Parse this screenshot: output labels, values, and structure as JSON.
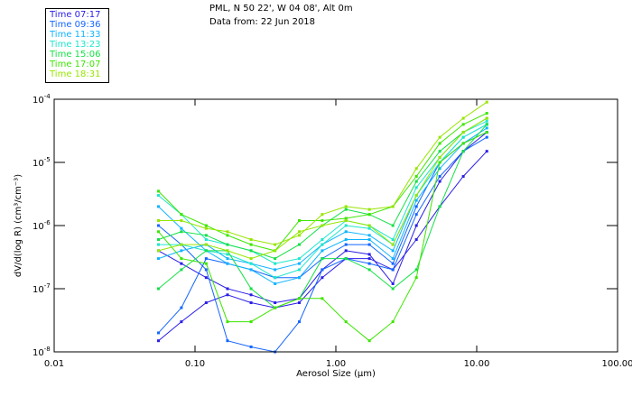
{
  "chart_data": {
    "type": "line",
    "title_lines": [
      "PML, N 50 22', W 04 08', Alt 0m",
      "Data from: 22 Jun 2018"
    ],
    "xlabel": "Aerosol Size (μm)",
    "ylabel": "dV/d(log R)  (cm³/cm⁻³)",
    "xscale": "log",
    "yscale": "log",
    "xlim": [
      0.01,
      100
    ],
    "ylim": [
      1e-08,
      0.0001
    ],
    "xticks": [
      "0.01",
      "0.10",
      "1.00",
      "10.00",
      "100.00"
    ],
    "yticks": [
      {
        "base": "10",
        "exp": "-4"
      },
      {
        "base": "10",
        "exp": "-5"
      },
      {
        "base": "10",
        "exp": "-6"
      },
      {
        "base": "10",
        "exp": "-7"
      },
      {
        "base": "10",
        "exp": "-8"
      }
    ],
    "legend": "top-left",
    "legend_entries": [
      {
        "label": "Time 07:17",
        "color": "#2a1ee6"
      },
      {
        "label": "Time 09:36",
        "color": "#1466ff"
      },
      {
        "label": "Time 11:33",
        "color": "#10b4ff"
      },
      {
        "label": "Time 13:23",
        "color": "#1ee6cc"
      },
      {
        "label": "Time 15:06",
        "color": "#14e046"
      },
      {
        "label": "Time 17:07",
        "color": "#3ce600"
      },
      {
        "label": "Time 18:31",
        "color": "#96e600"
      }
    ],
    "x": [
      0.055,
      0.08,
      0.12,
      0.17,
      0.25,
      0.37,
      0.55,
      0.8,
      1.18,
      1.73,
      2.54,
      3.73,
      5.47,
      8.03,
      11.8
    ],
    "series": [
      {
        "time": "07:17",
        "values": [
          1.5e-08,
          3e-08,
          6e-08,
          8e-08,
          6e-08,
          5e-08,
          6e-08,
          1.5e-07,
          3e-07,
          3e-07,
          2e-07,
          6e-07,
          2e-06,
          6e-06,
          1.5e-05
        ]
      },
      {
        "time": "07:17",
        "values": [
          4e-07,
          2.5e-07,
          1.5e-07,
          1e-07,
          8e-08,
          6e-08,
          7e-08,
          2e-07,
          4e-07,
          3.5e-07,
          1.2e-07,
          1e-06,
          5e-06,
          1.5e-05,
          3e-05
        ]
      },
      {
        "time": "09:36",
        "values": [
          2e-08,
          5e-08,
          3e-07,
          2.5e-07,
          2e-07,
          1.5e-07,
          1.5e-07,
          3e-07,
          5e-07,
          5e-07,
          2.5e-07,
          2e-06,
          1e-05,
          2e-05,
          3e-05
        ]
      },
      {
        "time": "09:36",
        "values": [
          1e-06,
          5e-07,
          2e-07,
          1.5e-08,
          1.2e-08,
          1e-08,
          3e-08,
          2e-07,
          3e-07,
          2.5e-07,
          2e-07,
          1.5e-06,
          6e-06,
          1.5e-05,
          2.5e-05
        ]
      },
      {
        "time": "11:33",
        "values": [
          2e-06,
          9e-07,
          4e-07,
          2.5e-07,
          2e-07,
          1.2e-07,
          1.5e-07,
          4e-07,
          6e-07,
          6e-07,
          3e-07,
          2.5e-06,
          8e-06,
          2e-05,
          3.5e-05
        ]
      },
      {
        "time": "11:33",
        "values": [
          3e-07,
          4e-07,
          5e-07,
          3e-07,
          2.5e-07,
          2e-07,
          2.5e-07,
          5e-07,
          8e-07,
          7e-07,
          4e-07,
          3e-06,
          1e-05,
          2.5e-05,
          4e-05
        ]
      },
      {
        "time": "13:23",
        "values": [
          5e-07,
          5e-07,
          4e-07,
          3.5e-07,
          2.5e-07,
          1.5e-07,
          2e-07,
          5e-07,
          1e-06,
          9e-07,
          5e-07,
          3e-06,
          1e-05,
          2.5e-05,
          4e-05
        ]
      },
      {
        "time": "13:23",
        "values": [
          3e-06,
          1.5e-06,
          6e-07,
          5e-07,
          4e-07,
          2.5e-07,
          3e-07,
          6e-07,
          1.2e-06,
          1e-06,
          6e-07,
          4e-06,
          1.2e-05,
          3e-05,
          4.5e-05
        ]
      },
      {
        "time": "15:06",
        "values": [
          6e-07,
          8e-07,
          7e-07,
          5e-07,
          4e-07,
          3e-07,
          5e-07,
          1e-06,
          1.8e-06,
          1.5e-06,
          1e-06,
          5e-06,
          1.5e-05,
          3e-05,
          5e-05
        ]
      },
      {
        "time": "15:06",
        "values": [
          1e-07,
          2e-07,
          4e-07,
          4e-07,
          1e-07,
          5e-08,
          7e-08,
          3e-07,
          3e-07,
          2e-07,
          1e-07,
          2e-07,
          2e-06,
          1.5e-05,
          4e-05
        ]
      },
      {
        "time": "17:07",
        "values": [
          3.5e-06,
          1.5e-06,
          1e-06,
          7e-07,
          5e-07,
          4e-07,
          1.2e-06,
          1.2e-06,
          1.3e-06,
          1.5e-06,
          2e-06,
          6e-06,
          2e-05,
          4e-05,
          6e-05
        ]
      },
      {
        "time": "17:07",
        "values": [
          8e-07,
          3e-07,
          2.5e-07,
          3e-08,
          3e-08,
          5e-08,
          7e-08,
          7e-08,
          3e-08,
          1.5e-08,
          3e-08,
          1.5e-07,
          1e-05,
          2e-05,
          3e-05
        ]
      },
      {
        "time": "18:31",
        "values": [
          1.2e-06,
          1.2e-06,
          9e-07,
          8e-07,
          6e-07,
          5e-07,
          7e-07,
          1.5e-06,
          2e-06,
          1.8e-06,
          2e-06,
          8e-06,
          2.5e-05,
          5e-05,
          9e-05
        ]
      },
      {
        "time": "18:31",
        "values": [
          4e-07,
          5e-07,
          5e-07,
          4e-07,
          3e-07,
          4e-07,
          8e-07,
          1e-06,
          1.2e-06,
          1e-06,
          5e-07,
          3e-06,
          1.2e-05,
          3e-05,
          5e-05
        ]
      }
    ]
  }
}
